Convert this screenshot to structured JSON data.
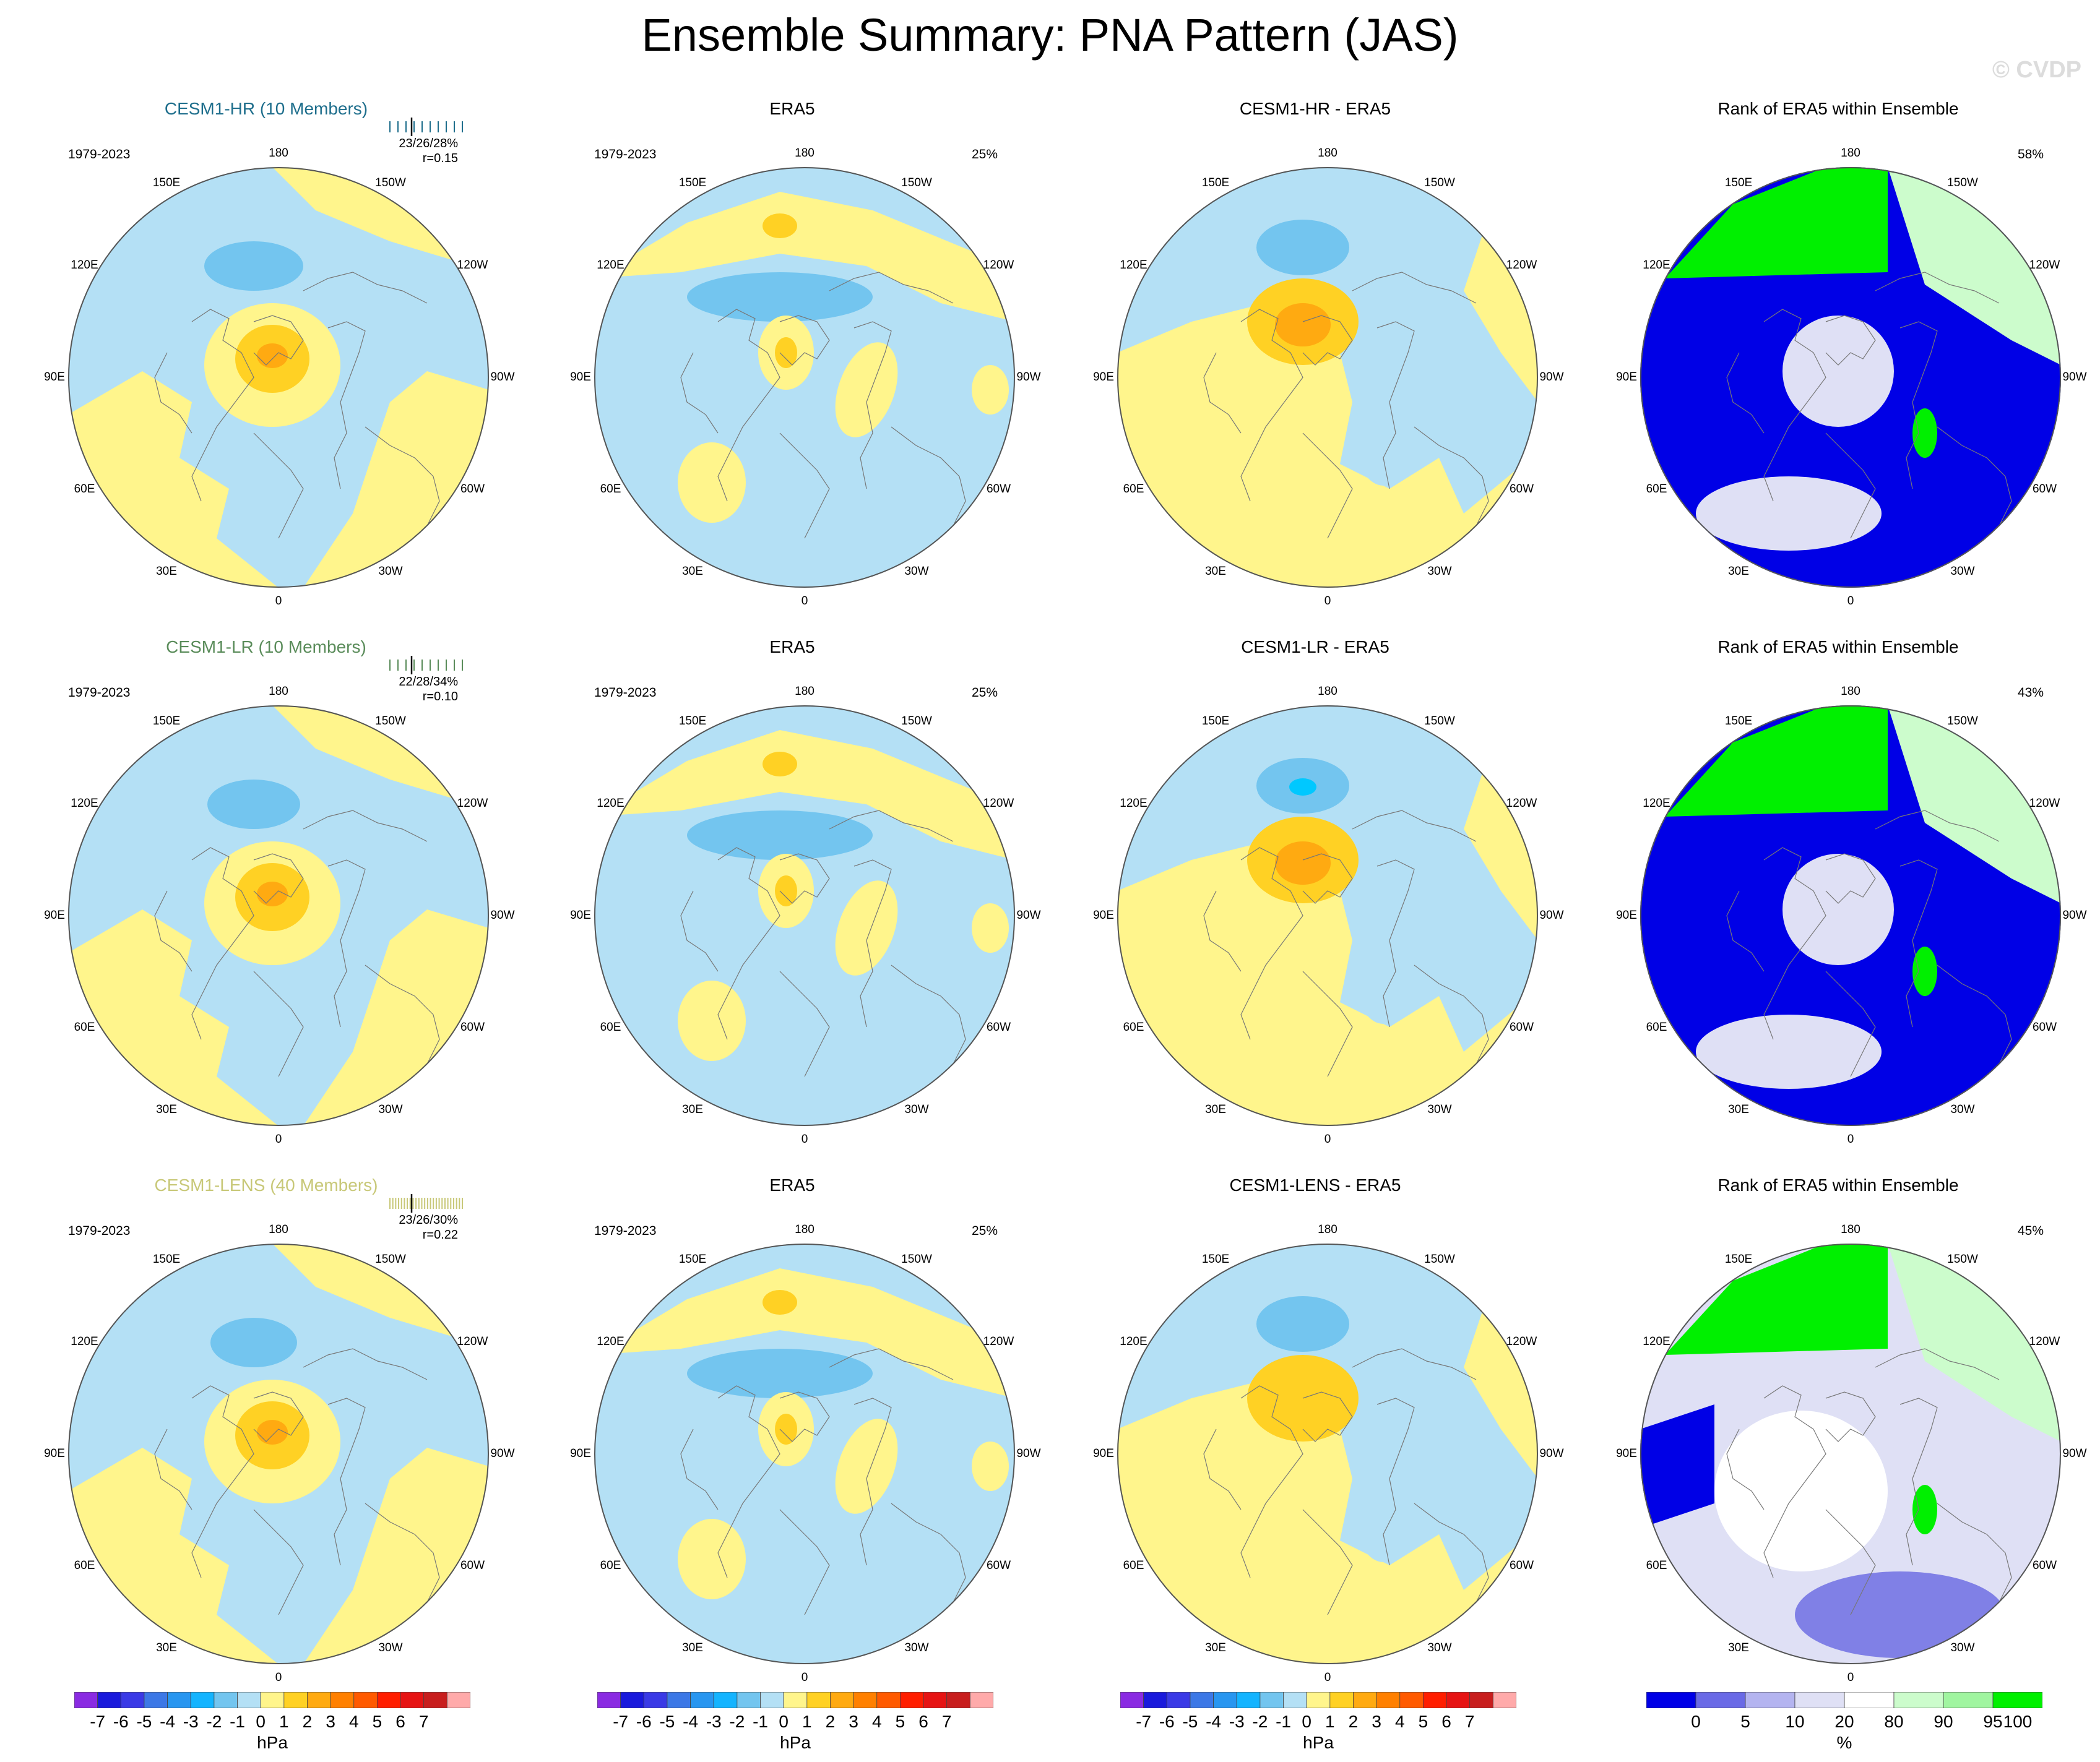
{
  "title": "Ensemble Summary: PNA Pattern (JAS)",
  "watermark": "© CVDP",
  "colors": {
    "pos1": "#fff58c",
    "pos2": "#ffd124",
    "pos3": "#ffaa11",
    "neg1": "#b4e0f5",
    "neg2": "#73c5ef",
    "neg3": "#46a6ea",
    "neg4": "#00c8ff",
    "rank_low": "#0000e6",
    "rank_lowmid": "#dfe0f5",
    "rank_high": "#00f000",
    "rank_highmid": "#ccfccc"
  },
  "lon_labels": [
    "180",
    "150E",
    "120E",
    "90E",
    "60E",
    "30E",
    "0",
    "30W",
    "60W",
    "90W",
    "120W",
    "150W"
  ],
  "rows": [
    {
      "model": {
        "title": "CESM1-HR (10 Members)",
        "title_color": "#1e6e8c",
        "period": "1979-2023",
        "stats1": "23/26/28%",
        "stats2": "r=0.15"
      },
      "obs": {
        "title": "ERA5",
        "period": "1979-2023",
        "pct": "25%"
      },
      "diff": {
        "title": "CESM1-HR - ERA5"
      },
      "rank": {
        "title": "Rank of ERA5 within Ensemble",
        "pct": "58%"
      }
    },
    {
      "model": {
        "title": "CESM1-LR (10 Members)",
        "title_color": "#5a8c5a",
        "period": "1979-2023",
        "stats1": "22/28/34%",
        "stats2": "r=0.10"
      },
      "obs": {
        "title": "ERA5",
        "period": "1979-2023",
        "pct": "25%"
      },
      "diff": {
        "title": "CESM1-LR - ERA5"
      },
      "rank": {
        "title": "Rank of ERA5 within Ensemble",
        "pct": "43%"
      }
    },
    {
      "model": {
        "title": "CESM1-LENS (40 Members)",
        "title_color": "#c8c878",
        "period": "1979-2023",
        "stats1": "23/26/30%",
        "stats2": "r=0.22"
      },
      "obs": {
        "title": "ERA5",
        "period": "1979-2023",
        "pct": "25%"
      },
      "diff": {
        "title": "CESM1-LENS - ERA5"
      },
      "rank": {
        "title": "Rank of ERA5 within Ensemble",
        "pct": "45%"
      }
    }
  ],
  "colorbar_hpa": {
    "labels": [
      "-7",
      "-6",
      "-5",
      "-4",
      "-3",
      "-2",
      "-1",
      "0",
      "1",
      "2",
      "3",
      "4",
      "5",
      "6",
      "7"
    ],
    "colors": [
      "#8a2be2",
      "#1a1adc",
      "#3a3ae6",
      "#3c78e6",
      "#2896f0",
      "#14b4ff",
      "#73c5ef",
      "#b4e0f5",
      "#fff58c",
      "#ffd124",
      "#ffaa11",
      "#ff8000",
      "#ff5a00",
      "#ff1e00",
      "#e61414",
      "#c81e1e",
      "#ffaaaa"
    ],
    "unit": "hPa"
  },
  "colorbar_rank": {
    "labels": [
      "0",
      "5",
      "10",
      "20",
      "80",
      "90",
      "95",
      "100"
    ],
    "colors": [
      "#0000e6",
      "#6a6ae6",
      "#b4b4f0",
      "#dfe0f5",
      "#ffffff",
      "#ccfccc",
      "#a0f5a0",
      "#00f000"
    ],
    "unit": "%"
  }
}
